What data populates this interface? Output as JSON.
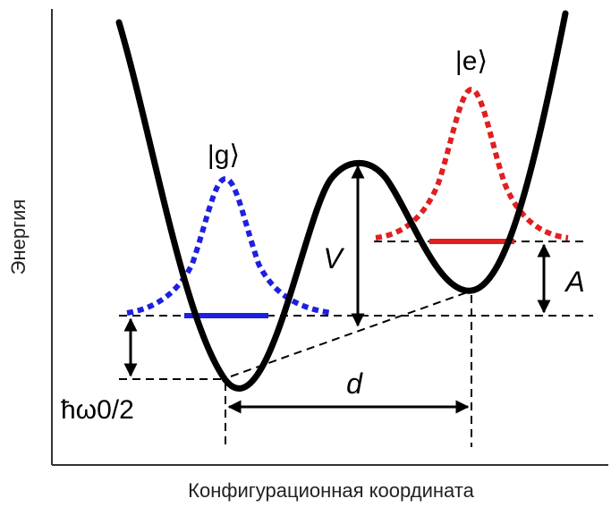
{
  "axes": {
    "xlabel": "Конфигурационная координата",
    "ylabel": "Энергия"
  },
  "labels": {
    "ground_state": "|g⟩",
    "excited_state": "|e⟩",
    "barrier": "V",
    "asymmetry": "A",
    "distance": "d",
    "zero_point_energy": "ħω0/2"
  },
  "colors": {
    "potential": "#000000",
    "ground": "#1f1fe0",
    "excited": "#e01f1f",
    "guide": "#000000"
  }
}
